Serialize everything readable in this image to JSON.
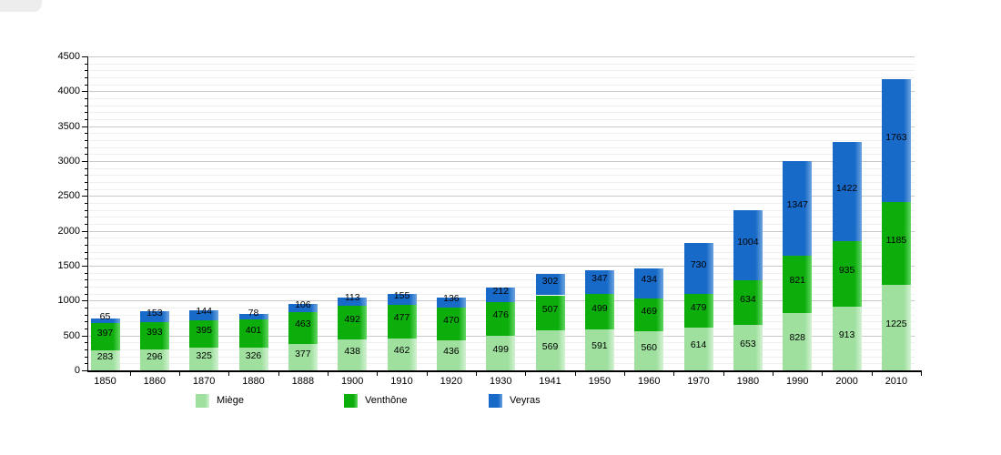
{
  "chart_data": {
    "type": "bar",
    "stacked": true,
    "title": "",
    "categories": [
      "1850",
      "1860",
      "1870",
      "1880",
      "1888",
      "1900",
      "1910",
      "1920",
      "1930",
      "1941",
      "1950",
      "1960",
      "1970",
      "1980",
      "1990",
      "2000",
      "2010"
    ],
    "series": [
      {
        "name": "Miège",
        "color": "#9FE09F",
        "highlight": "#D4F2D4",
        "values": [
          283,
          296,
          325,
          326,
          377,
          438,
          462,
          436,
          499,
          569,
          591,
          560,
          614,
          653,
          828,
          913,
          1225
        ]
      },
      {
        "name": "Venthône",
        "color": "#0CAE0C",
        "highlight": "#63D663",
        "values": [
          397,
          393,
          395,
          401,
          463,
          492,
          477,
          470,
          476,
          507,
          499,
          469,
          479,
          634,
          821,
          935,
          1185
        ]
      },
      {
        "name": "Veyras",
        "color": "#186AC8",
        "highlight": "#6CA3DE",
        "values": [
          65,
          153,
          144,
          78,
          106,
          113,
          155,
          136,
          212,
          302,
          347,
          434,
          730,
          1004,
          1347,
          1422,
          1763
        ]
      }
    ],
    "y_axis": {
      "min": 0,
      "max": 4500,
      "major_step": 500,
      "minor_step": 100,
      "tick_labels": [
        "0",
        "500",
        "1000",
        "1500",
        "2000",
        "2500",
        "3000",
        "3500",
        "4000",
        "4500"
      ]
    },
    "x_axis": {
      "tick_labels": [
        "1850",
        "1860",
        "1870",
        "1880",
        "1888",
        "1900",
        "1910",
        "1920",
        "1930",
        "1941",
        "1950",
        "1960",
        "1970",
        "1980",
        "1990",
        "2000",
        "2010"
      ]
    },
    "grid": true,
    "bar_value_labels": true,
    "legend": {
      "position": "bottom",
      "entries": [
        "Miège",
        "Venthône",
        "Veyras"
      ]
    }
  },
  "colors": {
    "grid_major": "#c9c9c9",
    "grid_minor": "#efefef",
    "axis": "#000000",
    "label_text": "#000000"
  }
}
